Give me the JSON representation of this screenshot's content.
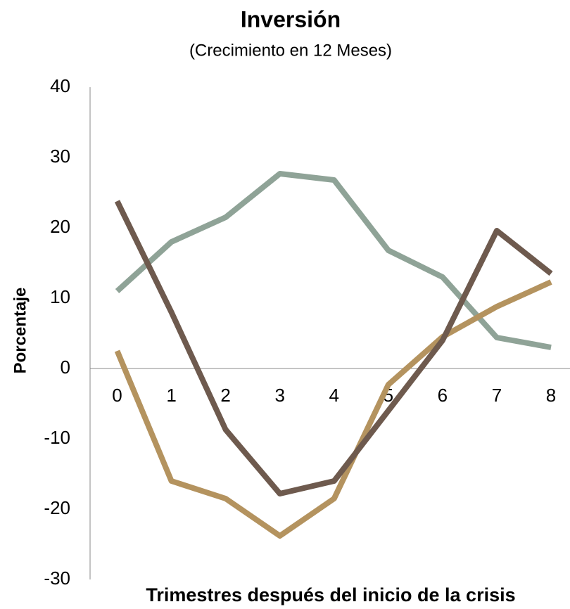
{
  "chart_data": {
    "type": "line",
    "title": "Inversión",
    "subtitle": "(Crecimiento en 12 Meses)",
    "y_label": "Porcentaje",
    "x_label": "Trimestres después del inicio de la crisis",
    "x": [
      0,
      1,
      2,
      3,
      4,
      5,
      6,
      7,
      8
    ],
    "xlim": [
      -0.5,
      8.35
    ],
    "xticks": [
      0,
      1,
      2,
      3,
      4,
      5,
      6,
      7,
      8
    ],
    "ylim": [
      -30,
      40
    ],
    "yticks": [
      -30,
      -20,
      -10,
      0,
      10,
      20,
      30,
      40
    ],
    "grid": false,
    "series": [
      {
        "color": "#8fa397",
        "values": [
          11,
          18,
          21.5,
          27.7,
          26.8,
          16.8,
          13,
          4.4,
          3
        ]
      },
      {
        "color": "#b4935f",
        "values": [
          2.5,
          -16,
          -18.5,
          -23.8,
          -18.5,
          -2.3,
          4.5,
          8.8,
          12.3
        ]
      },
      {
        "color": "#6e5a4e",
        "values": [
          23.8,
          8,
          -8.7,
          -17.8,
          -16,
          -6,
          4,
          19.6,
          13.5
        ]
      }
    ]
  }
}
